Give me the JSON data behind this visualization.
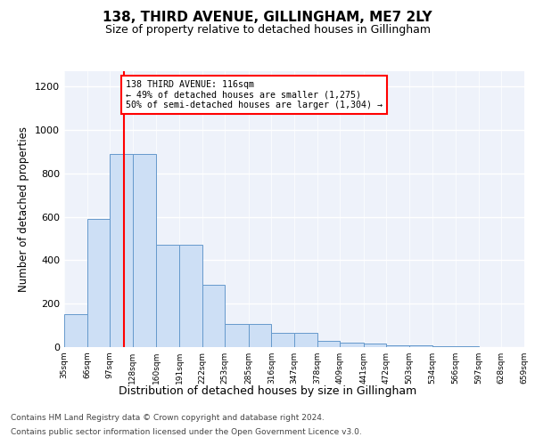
{
  "title": "138, THIRD AVENUE, GILLINGHAM, ME7 2LY",
  "subtitle": "Size of property relative to detached houses in Gillingham",
  "xlabel": "Distribution of detached houses by size in Gillingham",
  "ylabel": "Number of detached properties",
  "bar_color": "#cddff5",
  "bar_edge_color": "#6699cc",
  "vline_x": 116,
  "vline_color": "red",
  "bin_edges": [
    35,
    66,
    97,
    128,
    160,
    191,
    222,
    253,
    285,
    316,
    347,
    378,
    409,
    441,
    472,
    503,
    534,
    566,
    597,
    628,
    659
  ],
  "bar_heights": [
    150,
    590,
    890,
    890,
    470,
    470,
    285,
    105,
    105,
    65,
    65,
    30,
    22,
    15,
    10,
    10,
    5,
    3,
    2,
    1
  ],
  "ylim": [
    0,
    1270
  ],
  "yticks": [
    0,
    200,
    400,
    600,
    800,
    1000,
    1200
  ],
  "annotation_text": "138 THIRD AVENUE: 116sqm\n← 49% of detached houses are smaller (1,275)\n50% of semi-detached houses are larger (1,304) →",
  "annotation_box_color": "white",
  "annotation_box_edge": "red",
  "footnote1": "Contains HM Land Registry data © Crown copyright and database right 2024.",
  "footnote2": "Contains public sector information licensed under the Open Government Licence v3.0.",
  "background_color": "#eef2fa",
  "grid_color": "white",
  "fig_bg": "white"
}
